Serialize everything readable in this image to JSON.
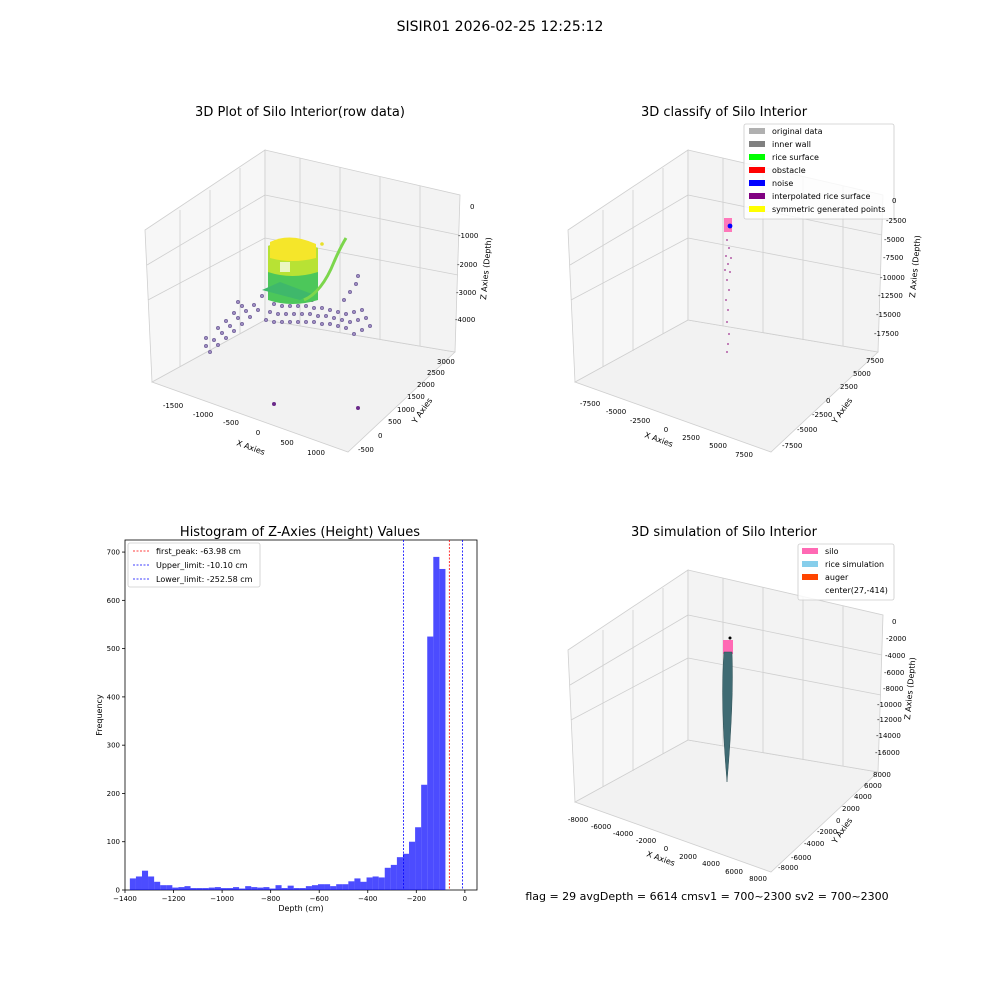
{
  "suptitle": "SISIR01 2026-02-25 12:25:12",
  "panel1": {
    "title": "3D Plot of Silo Interior(row data)",
    "xlabel": "X Axies",
    "ylabel": "Y Axies",
    "zlabel": "Z Axies (Depth)",
    "xticks": [
      "-1500",
      "-1000",
      "-500",
      "0",
      "500",
      "1000"
    ],
    "yticks": [
      "-500",
      "0",
      "500",
      "1000",
      "1500",
      "2000",
      "2500",
      "3000"
    ],
    "zticks": [
      "0",
      "-1000",
      "-2000",
      "-3000",
      "-4000"
    ]
  },
  "panel2": {
    "title": "3D classify of Silo Interior",
    "xlabel": "X Axies",
    "ylabel": "Y Axies",
    "zlabel": "Z Axies (Depth)",
    "xticks": [
      "-7500",
      "-5000",
      "-2500",
      "0",
      "2500",
      "5000",
      "7500"
    ],
    "yticks": [
      "-7500",
      "-5000",
      "-2500",
      "0",
      "2500",
      "5000",
      "7500"
    ],
    "zticks": [
      "0",
      "-2500",
      "-5000",
      "-7500",
      "-10000",
      "-12500",
      "-15000",
      "-17500"
    ],
    "legend": [
      {
        "label": "original data",
        "color": "#b0b0b0"
      },
      {
        "label": "inner wall",
        "color": "#808080"
      },
      {
        "label": "rice surface",
        "color": "#00ff00"
      },
      {
        "label": "obstacle",
        "color": "#ff0000"
      },
      {
        "label": "noise",
        "color": "#0000ff"
      },
      {
        "label": "interpolated rice surface",
        "color": "#800080"
      },
      {
        "label": "symmetric generated points",
        "color": "#ffff00"
      }
    ]
  },
  "panel4": {
    "title": "3D simulation of Silo Interior",
    "xlabel": "X Axies",
    "ylabel": "Y Axies",
    "zlabel": "Z Axies (Depth)",
    "xticks": [
      "-8000",
      "-6000",
      "-4000",
      "-2000",
      "0",
      "2000",
      "4000",
      "6000",
      "8000"
    ],
    "yticks": [
      "-8000",
      "-6000",
      "-4000",
      "-2000",
      "0",
      "2000",
      "4000",
      "6000",
      "8000"
    ],
    "zticks": [
      "0",
      "-2000",
      "-4000",
      "-6000",
      "-8000",
      "-10000",
      "-12000",
      "-14000",
      "-16000"
    ],
    "legend": [
      {
        "label": "silo",
        "color": "#ff69b4"
      },
      {
        "label": "rice simulation",
        "color": "#87ceeb"
      },
      {
        "label": "auger",
        "color": "#ff4500"
      },
      {
        "label": "center(27,-414)",
        "color": ""
      }
    ]
  },
  "status_text": "flag = 29  avgDepth = 6614 cmsv1 = 700~2300  sv2 = 700~2300",
  "chart_data": {
    "type": "bar",
    "title": "Histogram of Z-Axies (Height) Values",
    "xlabel": "Depth (cm)",
    "ylabel": "Frequency",
    "xlim": [
      -1400,
      50
    ],
    "ylim": [
      0,
      725
    ],
    "xticks": [
      -1400,
      -1200,
      -1000,
      -800,
      -600,
      -400,
      -200,
      0
    ],
    "yticks": [
      0,
      100,
      200,
      300,
      400,
      500,
      600,
      700
    ],
    "bar_color": "#0000ff",
    "bins": [
      [
        -1380,
        -1355,
        24
      ],
      [
        -1355,
        -1330,
        28
      ],
      [
        -1330,
        -1305,
        40
      ],
      [
        -1305,
        -1280,
        28
      ],
      [
        -1280,
        -1255,
        17
      ],
      [
        -1255,
        -1230,
        10
      ],
      [
        -1230,
        -1205,
        10
      ],
      [
        -1205,
        -1180,
        5
      ],
      [
        -1180,
        -1155,
        6
      ],
      [
        -1155,
        -1130,
        8
      ],
      [
        -1130,
        -1105,
        4
      ],
      [
        -1105,
        -1080,
        4
      ],
      [
        -1080,
        -1055,
        4
      ],
      [
        -1055,
        -1030,
        5
      ],
      [
        -1030,
        -1005,
        6
      ],
      [
        -1005,
        -980,
        4
      ],
      [
        -980,
        -955,
        4
      ],
      [
        -955,
        -930,
        6
      ],
      [
        -930,
        -905,
        3
      ],
      [
        -905,
        -880,
        8
      ],
      [
        -880,
        -855,
        6
      ],
      [
        -855,
        -830,
        5
      ],
      [
        -830,
        -805,
        6
      ],
      [
        -805,
        -780,
        3
      ],
      [
        -780,
        -755,
        10
      ],
      [
        -755,
        -730,
        4
      ],
      [
        -730,
        -705,
        9
      ],
      [
        -705,
        -680,
        4
      ],
      [
        -680,
        -655,
        4
      ],
      [
        -655,
        -630,
        8
      ],
      [
        -630,
        -605,
        10
      ],
      [
        -605,
        -580,
        12
      ],
      [
        -580,
        -555,
        12
      ],
      [
        -555,
        -530,
        8
      ],
      [
        -530,
        -505,
        12
      ],
      [
        -505,
        -480,
        12
      ],
      [
        -480,
        -455,
        18
      ],
      [
        -455,
        -430,
        24
      ],
      [
        -430,
        -405,
        17
      ],
      [
        -405,
        -380,
        26
      ],
      [
        -380,
        -355,
        28
      ],
      [
        -355,
        -330,
        26
      ],
      [
        -330,
        -305,
        46
      ],
      [
        -305,
        -280,
        52
      ],
      [
        -280,
        -255,
        68
      ],
      [
        -255,
        -230,
        75
      ],
      [
        -230,
        -205,
        100
      ],
      [
        -205,
        -180,
        130
      ],
      [
        -180,
        -155,
        218
      ],
      [
        -155,
        -130,
        525
      ],
      [
        -130,
        -105,
        690
      ],
      [
        -105,
        -80,
        665
      ]
    ],
    "vlines": [
      {
        "label": "first_peak: -63.98 cm",
        "x": -63.98,
        "color": "#ff0000"
      },
      {
        "label": "Upper_limit: -10.10 cm",
        "x": -10.1,
        "color": "#0000ff"
      },
      {
        "label": "Lower_limit: -252.58 cm",
        "x": -252.58,
        "color": "#0000ff"
      }
    ]
  }
}
